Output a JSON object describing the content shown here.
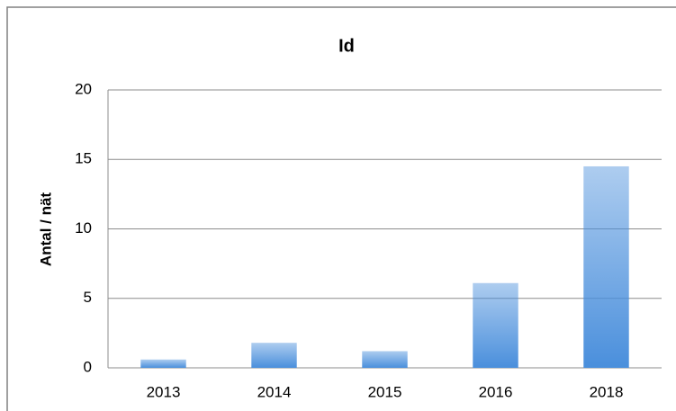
{
  "chart_data": {
    "type": "bar",
    "title": "Id",
    "y_label": "Antal / nät",
    "categories": [
      "2013",
      "2014",
      "2015",
      "2016",
      "2018"
    ],
    "values": [
      0.6,
      1.8,
      1.2,
      6.1,
      14.5
    ],
    "color": "#4a8fdc",
    "ylim": [
      0,
      20
    ],
    "yticks": [
      0,
      5,
      10,
      15,
      20
    ],
    "grid": true
  }
}
